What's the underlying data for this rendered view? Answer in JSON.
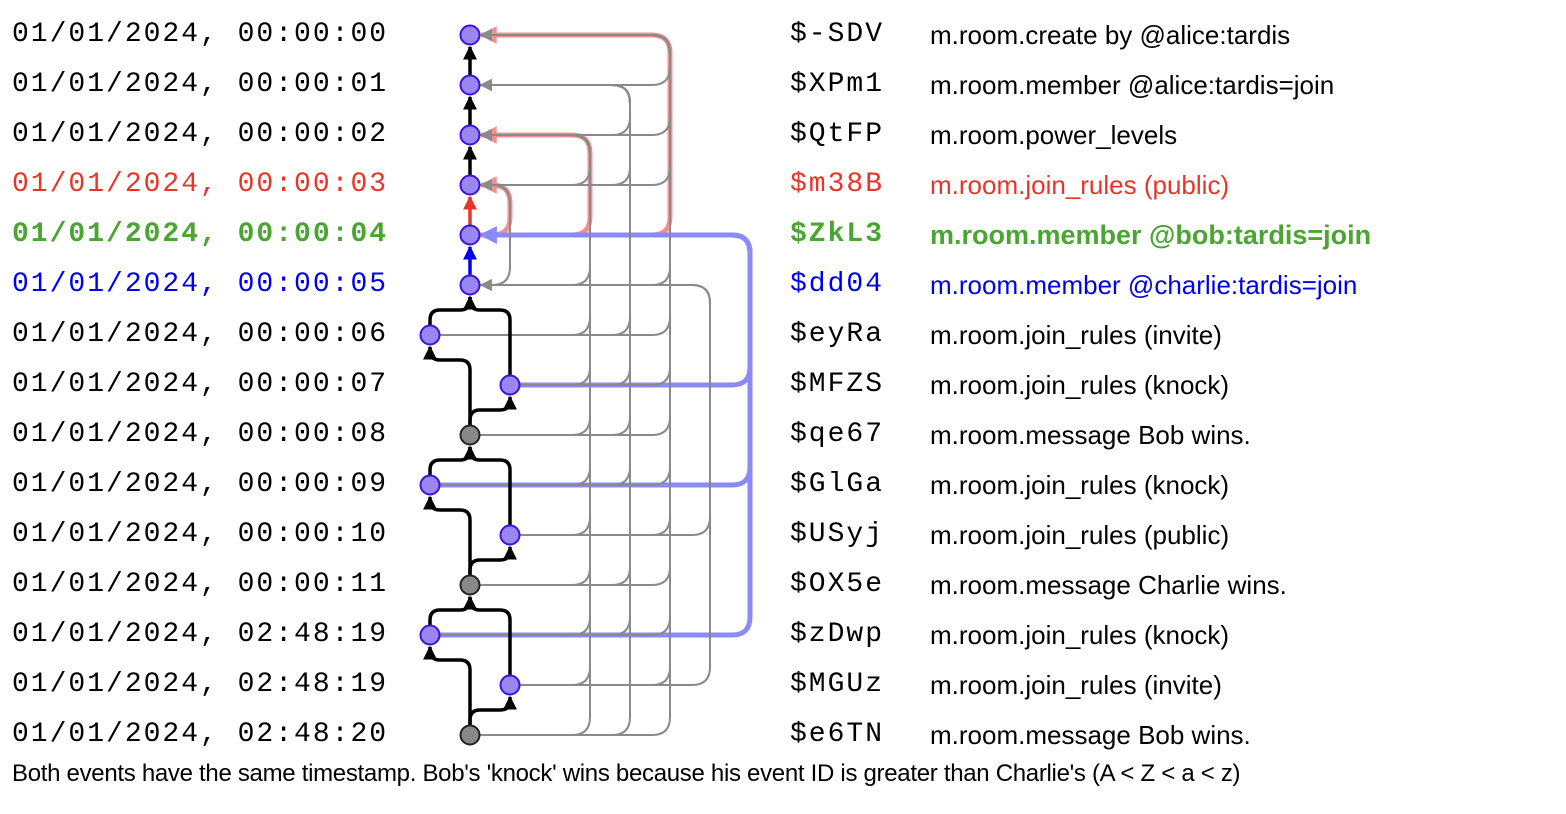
{
  "colors": {
    "red": "#e8352a",
    "green": "#4aa532",
    "blue": "#0000ee",
    "node": "#9a86f0",
    "node_stroke": "#3b10e0",
    "gray_node": "#888888",
    "lane": "#8a8a8a",
    "pink": "#f09090",
    "lightblue": "#8b8bf5"
  },
  "events": [
    {
      "time": "01/01/2024, 00:00:00",
      "id": "$-SDV",
      "desc": "m.room.create by @alice:tardis",
      "color": "",
      "col": "c",
      "node": "purple"
    },
    {
      "time": "01/01/2024, 00:00:01",
      "id": "$XPm1",
      "desc": "m.room.member @alice:tardis=join",
      "color": "",
      "col": "c",
      "node": "purple"
    },
    {
      "time": "01/01/2024, 00:00:02",
      "id": "$QtFP",
      "desc": "m.room.power_levels",
      "color": "",
      "col": "c",
      "node": "purple"
    },
    {
      "time": "01/01/2024, 00:00:03",
      "id": "$m38B",
      "desc": "m.room.join_rules (public)",
      "color": "red",
      "col": "c",
      "node": "purple"
    },
    {
      "time": "01/01/2024, 00:00:04",
      "id": "$ZkL3",
      "desc": "m.room.member @bob:tardis=join",
      "color": "green",
      "bold": true,
      "col": "c",
      "node": "purple"
    },
    {
      "time": "01/01/2024, 00:00:05",
      "id": "$dd04",
      "desc": "m.room.member @charlie:tardis=join",
      "color": "blue",
      "col": "c",
      "node": "purple"
    },
    {
      "time": "01/01/2024, 00:00:06",
      "id": "$eyRa",
      "desc": "m.room.join_rules (invite)",
      "color": "",
      "col": "l",
      "node": "purple"
    },
    {
      "time": "01/01/2024, 00:00:07",
      "id": "$MFZS",
      "desc": "m.room.join_rules (knock)",
      "color": "",
      "col": "r",
      "node": "purple"
    },
    {
      "time": "01/01/2024, 00:00:08",
      "id": "$qe67",
      "desc": "m.room.message Bob wins.",
      "color": "",
      "col": "c",
      "node": "gray"
    },
    {
      "time": "01/01/2024, 00:00:09",
      "id": "$GlGa",
      "desc": "m.room.join_rules (knock)",
      "color": "",
      "col": "l",
      "node": "purple"
    },
    {
      "time": "01/01/2024, 00:00:10",
      "id": "$USyj",
      "desc": "m.room.join_rules (public)",
      "color": "",
      "col": "r",
      "node": "purple"
    },
    {
      "time": "01/01/2024, 00:00:11",
      "id": "$OX5e",
      "desc": "m.room.message Charlie wins.",
      "color": "",
      "col": "c",
      "node": "gray"
    },
    {
      "time": "01/01/2024, 02:48:19",
      "id": "$zDwp",
      "desc": "m.room.join_rules (knock)",
      "color": "",
      "col": "l",
      "node": "purple"
    },
    {
      "time": "01/01/2024, 02:48:19",
      "id": "$MGUz",
      "desc": "m.room.join_rules (invite)",
      "color": "",
      "col": "r",
      "node": "purple"
    },
    {
      "time": "01/01/2024, 02:48:20",
      "id": "$e6TN",
      "desc": "m.room.message Bob wins.",
      "color": "",
      "col": "c",
      "node": "gray"
    }
  ],
  "prev_edges": [
    [
      1,
      0,
      "black"
    ],
    [
      2,
      1,
      "black"
    ],
    [
      3,
      2,
      "black"
    ],
    [
      4,
      3,
      "red"
    ],
    [
      5,
      4,
      "blue"
    ],
    [
      6,
      5,
      "black"
    ],
    [
      7,
      5,
      "black"
    ],
    [
      8,
      6,
      "black"
    ],
    [
      8,
      7,
      "black"
    ],
    [
      9,
      8,
      "black"
    ],
    [
      10,
      8,
      "black"
    ],
    [
      11,
      9,
      "black"
    ],
    [
      11,
      10,
      "black"
    ],
    [
      12,
      11,
      "black"
    ],
    [
      13,
      11,
      "black"
    ],
    [
      14,
      12,
      "black"
    ],
    [
      14,
      13,
      "black"
    ]
  ],
  "auth_edges": [
    [
      1,
      0,
      "gray"
    ],
    [
      2,
      1,
      "gray"
    ],
    [
      2,
      0,
      "gray"
    ],
    [
      3,
      2,
      "gray"
    ],
    [
      3,
      1,
      "gray"
    ],
    [
      3,
      0,
      "gray"
    ],
    [
      4,
      3,
      "pink"
    ],
    [
      4,
      2,
      "pink"
    ],
    [
      4,
      0,
      "pink"
    ],
    [
      5,
      3,
      "gray"
    ],
    [
      5,
      2,
      "gray"
    ],
    [
      5,
      0,
      "gray"
    ],
    [
      6,
      2,
      "gray"
    ],
    [
      6,
      1,
      "gray"
    ],
    [
      6,
      0,
      "gray"
    ],
    [
      7,
      2,
      "gray"
    ],
    [
      7,
      1,
      "gray"
    ],
    [
      7,
      0,
      "gray"
    ],
    [
      7,
      4,
      "lightblue"
    ],
    [
      8,
      2,
      "gray"
    ],
    [
      8,
      1,
      "gray"
    ],
    [
      8,
      0,
      "gray"
    ],
    [
      9,
      2,
      "gray"
    ],
    [
      9,
      1,
      "gray"
    ],
    [
      9,
      0,
      "gray"
    ],
    [
      9,
      4,
      "lightblue"
    ],
    [
      10,
      2,
      "gray"
    ],
    [
      10,
      0,
      "gray"
    ],
    [
      10,
      5,
      "gray"
    ],
    [
      11,
      2,
      "gray"
    ],
    [
      11,
      1,
      "gray"
    ],
    [
      11,
      0,
      "gray"
    ],
    [
      12,
      2,
      "gray"
    ],
    [
      12,
      1,
      "gray"
    ],
    [
      12,
      0,
      "gray"
    ],
    [
      12,
      4,
      "lightblue"
    ],
    [
      13,
      2,
      "gray"
    ],
    [
      13,
      0,
      "gray"
    ],
    [
      13,
      5,
      "gray"
    ],
    [
      14,
      2,
      "gray"
    ],
    [
      14,
      1,
      "gray"
    ],
    [
      14,
      0,
      "gray"
    ]
  ],
  "caption": "Both events have the same timestamp. Bob's 'knock' wins because his event ID is greater than Charlie's (A < Z < a < z)"
}
